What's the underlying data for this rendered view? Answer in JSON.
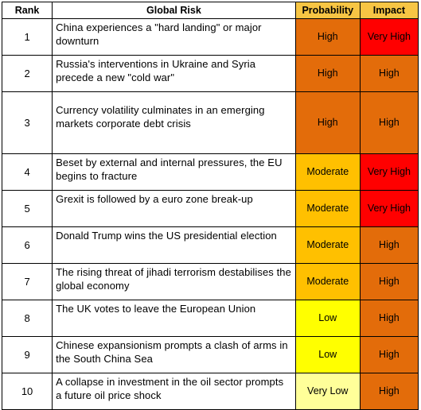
{
  "headers": {
    "rank": "Rank",
    "risk": "Global Risk",
    "probability": "Probability",
    "impact": "Impact"
  },
  "colors": {
    "header_highlight": "#f7c544",
    "High": "#e36c0a",
    "Very High": "#ff0000",
    "Moderate": "#ffc000",
    "Low": "#ffff00",
    "Very Low": "#ffff99"
  },
  "rows": [
    {
      "rank": "1",
      "risk": "China experiences a \"hard landing\" or major downturn",
      "probability": "High",
      "impact": "Very High"
    },
    {
      "rank": "2",
      "risk": "Russia's interventions in Ukraine and Syria precede a new \"cold war\"",
      "probability": "High",
      "impact": "High"
    },
    {
      "rank": "3",
      "risk": "Currency volatility culminates in an emerging markets corporate debt crisis",
      "probability": "High",
      "impact": "High"
    },
    {
      "rank": "4",
      "risk": "Beset by external and internal pressures, the EU begins to fracture",
      "probability": "Moderate",
      "impact": "Very High"
    },
    {
      "rank": "5",
      "risk": "Grexit is followed by a euro zone break-up",
      "probability": "Moderate",
      "impact": "Very High"
    },
    {
      "rank": "6",
      "risk": "Donald Trump wins the US presidential election",
      "probability": "Moderate",
      "impact": "High"
    },
    {
      "rank": "7",
      "risk": "The rising threat of jihadi terrorism destabilises the global economy",
      "probability": "Moderate",
      "impact": "High"
    },
    {
      "rank": "8",
      "risk": "The UK votes to leave the European Union",
      "probability": "Low",
      "impact": "High"
    },
    {
      "rank": "9",
      "risk": "Chinese expansionism prompts a clash of arms in the South China Sea",
      "probability": "Low",
      "impact": "High"
    },
    {
      "rank": "10",
      "risk": "A collapse in investment in the oil sector prompts a future oil price shock",
      "probability": "Very Low",
      "impact": "High"
    }
  ]
}
